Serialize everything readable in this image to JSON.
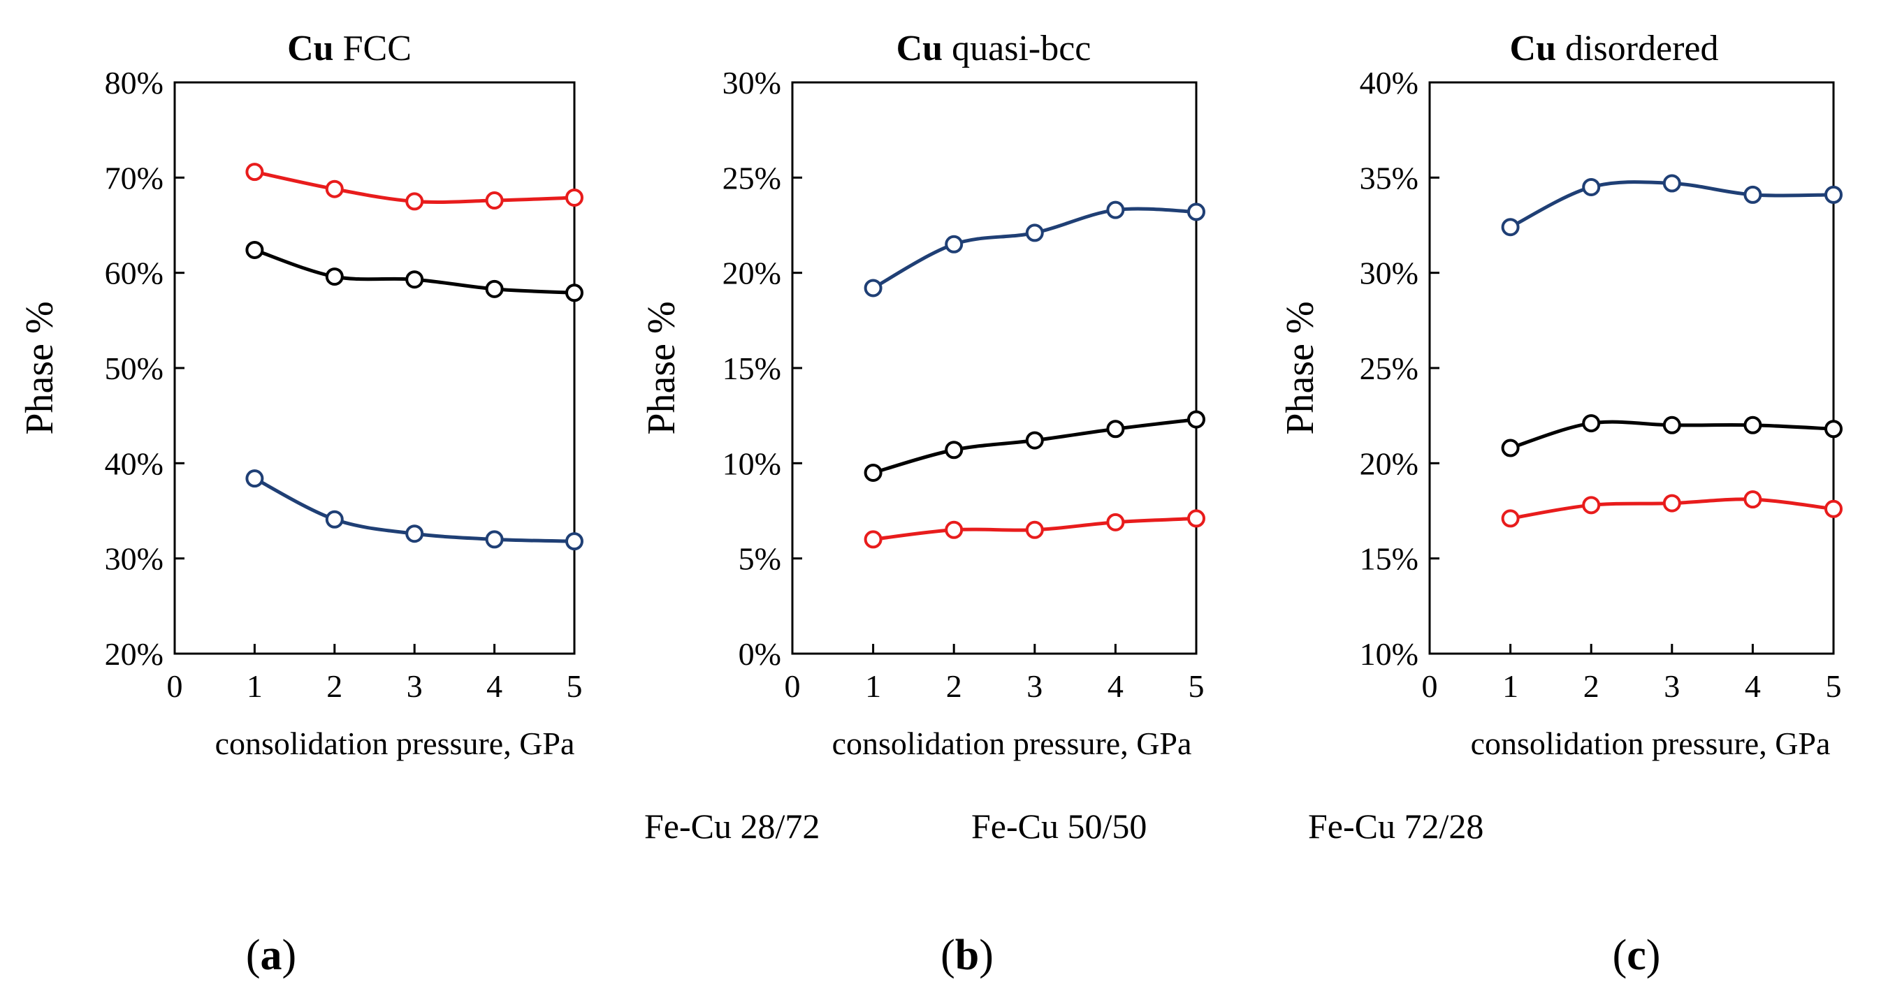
{
  "chart_data": [
    {
      "type": "line",
      "panel": "a",
      "title_bold": "Cu",
      "title_rest": " FCC",
      "xlabel": "consolidation pressure, GPa",
      "ylabel": "Phase %",
      "xlim": [
        0,
        5
      ],
      "ylim": [
        20,
        80
      ],
      "xticks": [
        "0",
        "1",
        "2",
        "3",
        "4",
        "5"
      ],
      "yticks": [
        "20%",
        "30%",
        "40%",
        "50%",
        "60%",
        "70%",
        "80%"
      ],
      "x": [
        1,
        2,
        3,
        4,
        5
      ],
      "series": [
        {
          "name": "Fe-Cu 28/72",
          "color": "#e81c1c",
          "values": [
            70.6,
            68.8,
            67.5,
            67.6,
            67.9
          ]
        },
        {
          "name": "Fe-Cu 50/50",
          "color": "#000000",
          "values": [
            62.4,
            59.6,
            59.3,
            58.3,
            57.9
          ]
        },
        {
          "name": "Fe-Cu 72/28",
          "color": "#1f3f75",
          "values": [
            38.4,
            34.1,
            32.6,
            32.0,
            31.8
          ]
        }
      ]
    },
    {
      "type": "line",
      "panel": "b",
      "title_bold": "Cu",
      "title_rest": " quasi-bcc",
      "xlabel": "consolidation pressure, GPa",
      "ylabel": "Phase %",
      "xlim": [
        0,
        5
      ],
      "ylim": [
        0,
        30
      ],
      "xticks": [
        "0",
        "1",
        "2",
        "3",
        "4",
        "5"
      ],
      "yticks": [
        "0%",
        "5%",
        "10%",
        "15%",
        "20%",
        "25%",
        "30%"
      ],
      "x": [
        1,
        2,
        3,
        4,
        5
      ],
      "series": [
        {
          "name": "Fe-Cu 28/72",
          "color": "#e81c1c",
          "values": [
            6.0,
            6.5,
            6.5,
            6.9,
            7.1
          ]
        },
        {
          "name": "Fe-Cu 50/50",
          "color": "#000000",
          "values": [
            9.5,
            10.7,
            11.2,
            11.8,
            12.3
          ]
        },
        {
          "name": "Fe-Cu 72/28",
          "color": "#1f3f75",
          "values": [
            19.2,
            21.5,
            22.1,
            23.3,
            23.2
          ]
        }
      ]
    },
    {
      "type": "line",
      "panel": "c",
      "title_bold": "Cu",
      "title_rest": " disordered",
      "xlabel": "consolidation pressure, GPa",
      "ylabel": "Phase %",
      "xlim": [
        0,
        5
      ],
      "ylim": [
        10,
        40
      ],
      "xticks": [
        "0",
        "1",
        "2",
        "3",
        "4",
        "5"
      ],
      "yticks": [
        "10%",
        "15%",
        "20%",
        "25%",
        "30%",
        "35%",
        "40%"
      ],
      "x": [
        1,
        2,
        3,
        4,
        5
      ],
      "series": [
        {
          "name": "Fe-Cu 28/72",
          "color": "#e81c1c",
          "values": [
            17.1,
            17.8,
            17.9,
            18.1,
            17.6
          ]
        },
        {
          "name": "Fe-Cu 50/50",
          "color": "#000000",
          "values": [
            20.8,
            22.1,
            22.0,
            22.0,
            21.8
          ]
        },
        {
          "name": "Fe-Cu 72/28",
          "color": "#1f3f75",
          "values": [
            32.4,
            34.5,
            34.7,
            34.1,
            34.1
          ]
        }
      ]
    }
  ],
  "legend": [
    "Fe-Cu 28/72",
    "Fe-Cu 50/50",
    "Fe-Cu 72/28"
  ],
  "panel_labels": {
    "a": {
      "open": "(",
      "letter": "a",
      "close": ")"
    },
    "b": {
      "open": "(",
      "letter": "b",
      "close": ")"
    },
    "c": {
      "open": "(",
      "letter": "c",
      "close": ")"
    }
  }
}
